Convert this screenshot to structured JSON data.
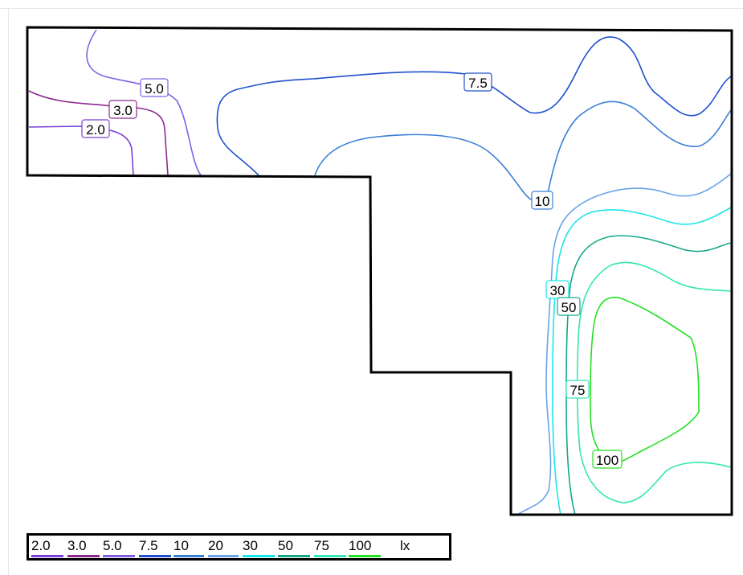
{
  "legend": {
    "unit": "lx",
    "levels": [
      {
        "label": "2.0",
        "color": "#7a3fd6"
      },
      {
        "label": "3.0",
        "color": "#8a2a8f"
      },
      {
        "label": "5.0",
        "color": "#8060e6"
      },
      {
        "label": "7.5",
        "color": "#1f4fd0"
      },
      {
        "label": "10",
        "color": "#3a7fd8"
      },
      {
        "label": "20",
        "color": "#6aa3e8"
      },
      {
        "label": "30",
        "color": "#19e6e6"
      },
      {
        "label": "50",
        "color": "#14a88a"
      },
      {
        "label": "75",
        "color": "#33e6b3"
      },
      {
        "label": "100",
        "color": "#22e022"
      }
    ]
  },
  "contour_labels": {
    "l2": "2.0",
    "l3": "3.0",
    "l5": "5.0",
    "l75": "7.5",
    "l10": "10",
    "l30": "30",
    "l50": "50",
    "l75b": "75",
    "l100": "100"
  }
}
